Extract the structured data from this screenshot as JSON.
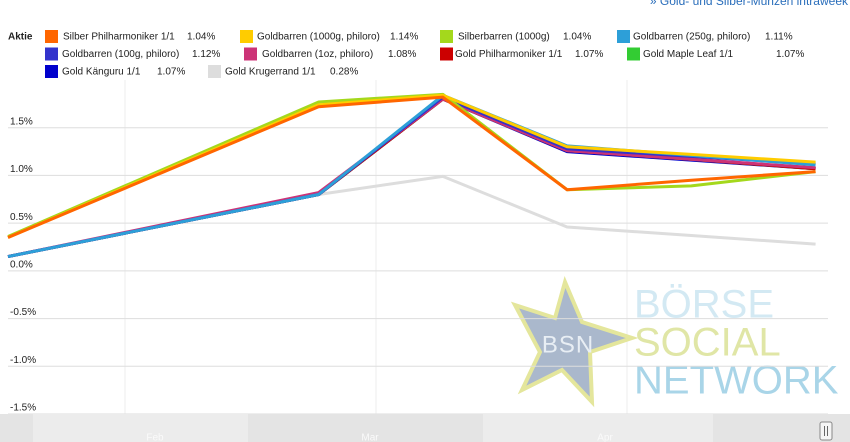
{
  "link": "» Gold- und Silber-Münzen intraweek",
  "watermark": {
    "badge": "BSN",
    "lines": [
      "BÖRSE",
      "SOCIAL",
      "NETWORK"
    ]
  },
  "chart_data": {
    "type": "line",
    "legend_title": "Aktie",
    "x": [
      0,
      5,
      7,
      9,
      11,
      13
    ],
    "xlim": [
      0,
      13.2
    ],
    "ylim": [
      -1.5,
      2.0
    ],
    "yticks": [
      {
        "value": -1.5,
        "label": "-1.5%"
      },
      {
        "value": -1.0,
        "label": "-1.0%"
      },
      {
        "value": -0.5,
        "label": "-0.5%"
      },
      {
        "value": 0.0,
        "label": "0.0%"
      },
      {
        "value": 0.5,
        "label": "0.5%"
      },
      {
        "value": 1.0,
        "label": "1.0%"
      },
      {
        "value": 1.5,
        "label": "1.5%"
      }
    ],
    "grid": true,
    "navigator_labels": [
      "Feb",
      "Mar",
      "Apr"
    ],
    "series": [
      {
        "name": "Silber Philharmoniker 1/1",
        "color": "#ff6600",
        "values": [
          0.35,
          1.72,
          1.82,
          0.85,
          0.95,
          1.04
        ],
        "value_label": "1.04%"
      },
      {
        "name": "Goldbarren (1000g, philoro)",
        "color": "#ffcc00",
        "values": [
          0.35,
          1.74,
          1.84,
          1.3,
          1.22,
          1.14
        ],
        "value_label": "1.14%"
      },
      {
        "name": "Silberbarren (1000g)",
        "color": "#a4d81c",
        "values": [
          0.36,
          1.77,
          1.85,
          0.85,
          0.89,
          1.04
        ],
        "value_label": "1.04%"
      },
      {
        "name": "Goldbarren (250g, philoro)",
        "color": "#2d9fd8",
        "values": [
          0.15,
          0.8,
          1.84,
          1.31,
          1.21,
          1.11
        ],
        "value_label": "1.11%"
      },
      {
        "name": "Goldbarren (100g, philoro)",
        "color": "#3333cc",
        "values": [
          0.15,
          0.8,
          1.82,
          1.28,
          1.2,
          1.12
        ],
        "value_label": "1.12%"
      },
      {
        "name": "Goldbarren (1oz, philoro)",
        "color": "#cc3377",
        "values": [
          0.15,
          0.82,
          1.8,
          1.26,
          1.17,
          1.08
        ],
        "value_label": "1.08%"
      },
      {
        "name": "Gold Philharmoniker 1/1",
        "color": "#cc0000",
        "values": [
          0.15,
          0.8,
          1.8,
          1.26,
          1.17,
          1.07
        ],
        "value_label": "1.07%"
      },
      {
        "name": "Gold Maple Leaf 1/1",
        "color": "#33cc33",
        "values": [
          0.15,
          0.8,
          1.8,
          1.26,
          1.17,
          1.07
        ],
        "value_label": "1.07%"
      },
      {
        "name": "Gold Känguru 1/1",
        "color": "#0000cc",
        "values": [
          0.15,
          0.8,
          1.8,
          1.25,
          1.16,
          1.07
        ],
        "value_label": "1.07%"
      },
      {
        "name": "Gold Krugerrand 1/1",
        "color": "#dddddd",
        "values": [
          0.15,
          0.8,
          0.99,
          0.46,
          0.37,
          0.28
        ],
        "value_label": "0.28%"
      }
    ]
  }
}
